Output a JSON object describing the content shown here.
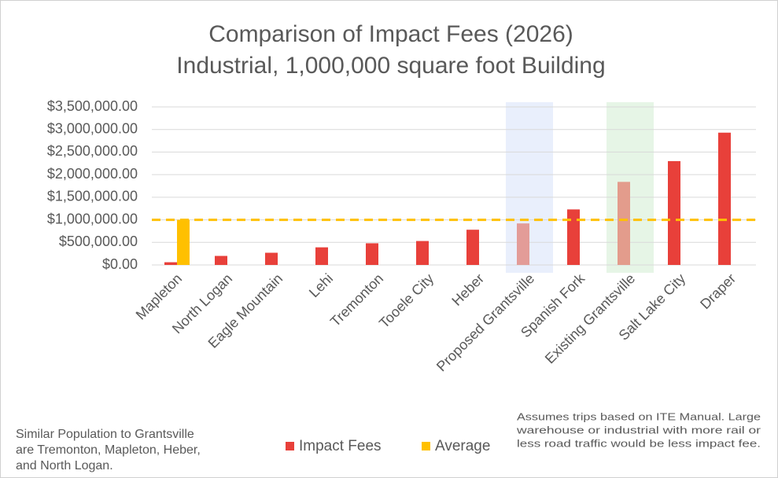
{
  "chart_data": {
    "type": "bar",
    "title": [
      "Comparison of Impact Fees (2026)",
      "Industrial, 1,000,000 square foot Building"
    ],
    "categories": [
      "Mapleton",
      "North Logan",
      "Eagle Mountain",
      "Lehi",
      "Tremonton",
      "Tooele City",
      "Heber",
      "Proposed Grantsville",
      "Spanish Fork",
      "Existing Grantsville",
      "Salt Lake City",
      "Draper"
    ],
    "series": [
      {
        "name": "Impact Fees",
        "color": "#e8403a",
        "values": [
          60000,
          200000,
          270000,
          390000,
          480000,
          530000,
          780000,
          920000,
          1230000,
          1840000,
          2300000,
          2930000
        ]
      },
      {
        "name": "Average",
        "color": "#ffc000",
        "values": [
          1000000,
          null,
          null,
          null,
          null,
          null,
          null,
          null,
          null,
          null,
          null,
          null
        ]
      }
    ],
    "reference_line": {
      "value": 1000000,
      "color": "#ffc000",
      "dashed": true
    },
    "highlights": [
      {
        "category": "Proposed Grantsville",
        "band_color": "#e9effc",
        "bar_color": "#e39c98"
      },
      {
        "category": "Existing Grantsville",
        "band_color": "#e6f5e6",
        "bar_color": "#e39c8c"
      }
    ],
    "ylim": [
      0,
      3500000
    ],
    "yticks": [
      {
        "value": 0,
        "label": "$0.00"
      },
      {
        "value": 500000,
        "label": "$500,000.00"
      },
      {
        "value": 1000000,
        "label": "$1,000,000.00"
      },
      {
        "value": 1500000,
        "label": "$1,500,000.00"
      },
      {
        "value": 2000000,
        "label": "$2,000,000.00"
      },
      {
        "value": 2500000,
        "label": "$2,500,000.00"
      },
      {
        "value": 3000000,
        "label": "$3,000,000.00"
      },
      {
        "value": 3500000,
        "label": "$3,500,000.00"
      }
    ],
    "grid": true,
    "legend": "bottom",
    "notes": [
      {
        "lines": [
          "Similar Population to Grantsville",
          "are Tremonton,  Mapleton, Heber,",
          "and North Logan."
        ]
      },
      {
        "lines": [
          "Assumes trips based on ITE Manual.  Large",
          "warehouse or industrial with more rail or",
          "less road traffic would be less impact fee."
        ]
      }
    ]
  }
}
